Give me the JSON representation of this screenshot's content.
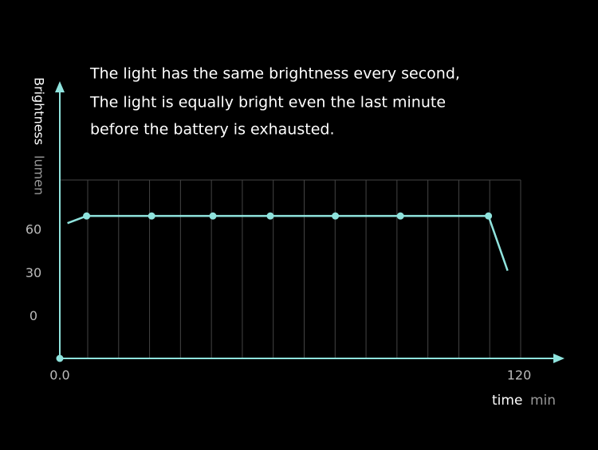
{
  "chart_data": {
    "type": "line",
    "annotation": [
      "The light has the same brightness every second,",
      "The light is equally bright even the last minute",
      "before the battery is exhausted."
    ],
    "y_label": "Brightness",
    "y_unit": "lumen",
    "x_label": "time",
    "x_unit": "min",
    "x": [
      2,
      7,
      24,
      40,
      55,
      72,
      89,
      112,
      117
    ],
    "series": [
      {
        "color": "#8fe3dd",
        "values": [
          65,
          70,
          70,
          70,
          70,
          70,
          70,
          70,
          32
        ]
      }
    ],
    "xlim": [
      0,
      120
    ],
    "xticks": [
      {
        "value": 0,
        "label": "0.0"
      },
      120
    ],
    "ylim": [
      -29,
      95
    ],
    "yticks": [
      0,
      30,
      60
    ],
    "grid": true
  }
}
